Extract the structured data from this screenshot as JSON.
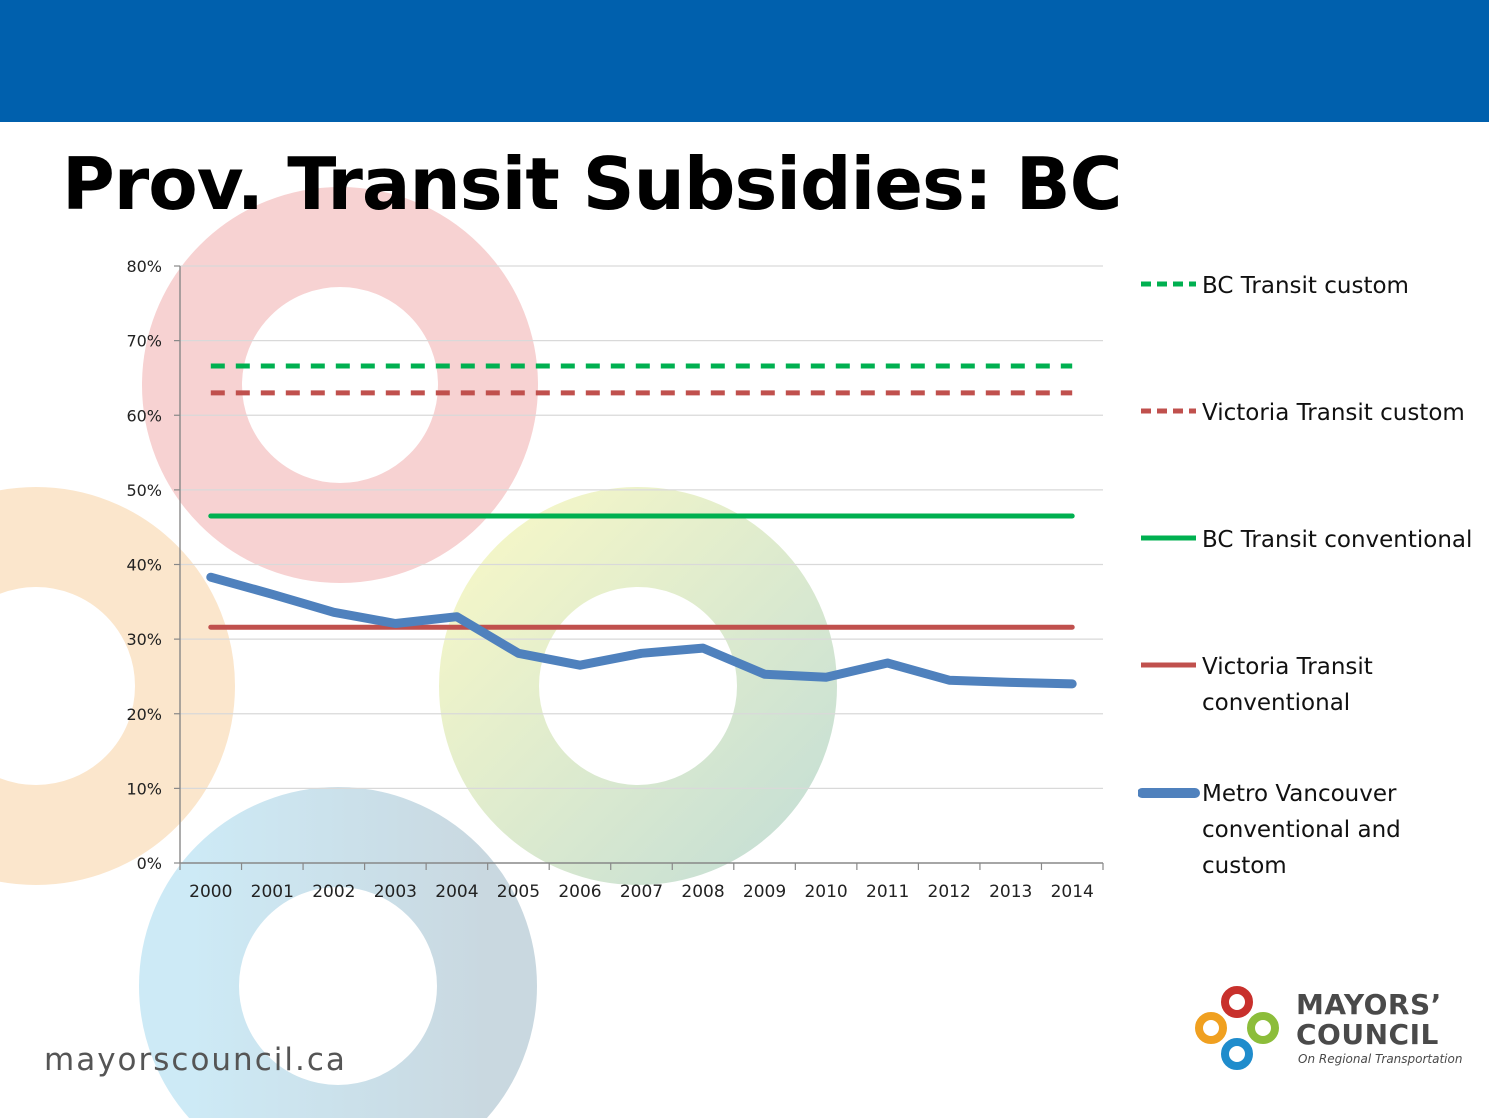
{
  "header": {
    "bar_color": "#0060ad"
  },
  "slide": {
    "title": "Prov. Transit Subsidies: BC"
  },
  "footer": {
    "url": "mayorscouncil.ca"
  },
  "logo": {
    "line1": "MAYORS’",
    "line2": "COUNCIL",
    "line3": "On Regional Transportation"
  },
  "chart_data": {
    "type": "line",
    "title": "",
    "xlabel": "",
    "ylabel": "",
    "ylim": [
      0,
      80
    ],
    "y_unit": "%",
    "y_ticks": [
      0,
      10,
      20,
      30,
      40,
      50,
      60,
      70,
      80
    ],
    "y_tick_labels": [
      "0%",
      "10%",
      "20%",
      "30%",
      "40%",
      "50%",
      "60%",
      "70%",
      "80%"
    ],
    "grid": true,
    "legend_position": "right",
    "categories": [
      "2000",
      "2001",
      "2002",
      "2003",
      "2004",
      "2005",
      "2006",
      "2007",
      "2008",
      "2009",
      "2010",
      "2011",
      "2012",
      "2013",
      "2014"
    ],
    "series": [
      {
        "name": "BC Transit custom",
        "style": "dashed",
        "weight": "medium",
        "color": "#00b050",
        "values": [
          66.6,
          66.6,
          66.6,
          66.6,
          66.6,
          66.6,
          66.6,
          66.6,
          66.6,
          66.6,
          66.6,
          66.6,
          66.6,
          66.6,
          66.6
        ]
      },
      {
        "name": "Victoria Transit custom",
        "style": "dashed",
        "weight": "medium",
        "color": "#c0504d",
        "values": [
          63,
          63,
          63,
          63,
          63,
          63,
          63,
          63,
          63,
          63,
          63,
          63,
          63,
          63,
          63
        ]
      },
      {
        "name": "BC Transit conventional",
        "style": "solid",
        "weight": "medium",
        "color": "#00b050",
        "values": [
          46.5,
          46.5,
          46.5,
          46.5,
          46.5,
          46.5,
          46.5,
          46.5,
          46.5,
          46.5,
          46.5,
          46.5,
          46.5,
          46.5,
          46.5
        ]
      },
      {
        "name": "Victoria Transit conventional",
        "style": "solid",
        "weight": "medium",
        "color": "#c0504d",
        "values": [
          31.6,
          31.6,
          31.6,
          31.6,
          31.6,
          31.6,
          31.6,
          31.6,
          31.6,
          31.6,
          31.6,
          31.6,
          31.6,
          31.6,
          31.6
        ]
      },
      {
        "name": "Metro Vancouver conventional and custom",
        "style": "solid",
        "weight": "heavy",
        "color": "#4f81bd",
        "values": [
          38.3,
          36.0,
          33.6,
          32.1,
          33.0,
          28.1,
          26.5,
          28.1,
          28.8,
          25.3,
          24.9,
          26.8,
          24.5,
          24.2,
          24.0
        ]
      }
    ]
  }
}
